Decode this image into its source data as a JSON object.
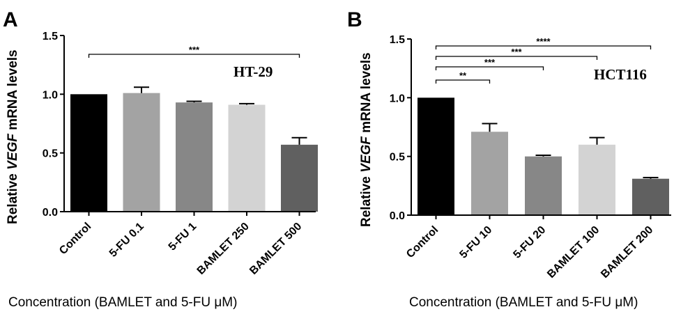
{
  "chart_data": [
    {
      "panel": "A",
      "type": "bar",
      "cell_line": "HT-29",
      "categories": [
        "Control",
        "5-FU 0.1",
        "5-FU 1",
        "BAMLET 250",
        "BAMLET 500"
      ],
      "values": [
        1.0,
        1.01,
        0.93,
        0.91,
        0.57
      ],
      "errors": [
        0.0,
        0.05,
        0.01,
        0.01,
        0.06
      ],
      "colors": [
        "#000000",
        "#a3a3a3",
        "#878787",
        "#d3d3d3",
        "#606060"
      ],
      "ylabel_prefix": "Relative ",
      "ylabel_italic": "VEGF",
      "ylabel_suffix": " mRNA levels",
      "xlabel": "Concentration (BAMLET and 5-FU μM)",
      "ylim": [
        0,
        1.5
      ],
      "yticks": [
        "0.0",
        "0.5",
        "1.0",
        "1.5"
      ],
      "yticks_values": [
        0,
        0.5,
        1.0,
        1.5
      ],
      "significance": [
        {
          "from": 0,
          "to": 4,
          "label": "***"
        }
      ]
    },
    {
      "panel": "B",
      "type": "bar",
      "cell_line": "HCT116",
      "categories": [
        "Control",
        "5-FU 10",
        "5-FU 20",
        "BAMLET 100",
        "BAMLET 200"
      ],
      "values": [
        1.0,
        0.71,
        0.5,
        0.6,
        0.31
      ],
      "errors": [
        0.0,
        0.07,
        0.01,
        0.06,
        0.01
      ],
      "colors": [
        "#000000",
        "#a3a3a3",
        "#878787",
        "#d3d3d3",
        "#606060"
      ],
      "ylabel_prefix": "Relative ",
      "ylabel_italic": "VEGF",
      "ylabel_suffix": " mRNA levels",
      "xlabel": "Concentration (BAMLET and 5-FU μM)",
      "ylim": [
        0,
        1.5
      ],
      "yticks": [
        "0.0",
        "0.5",
        "1.0",
        "1.5"
      ],
      "yticks_values": [
        0,
        0.5,
        1.0,
        1.5
      ],
      "significance": [
        {
          "from": 0,
          "to": 1,
          "label": "**"
        },
        {
          "from": 0,
          "to": 2,
          "label": "***"
        },
        {
          "from": 0,
          "to": 3,
          "label": "***"
        },
        {
          "from": 0,
          "to": 4,
          "label": "****"
        }
      ]
    }
  ]
}
